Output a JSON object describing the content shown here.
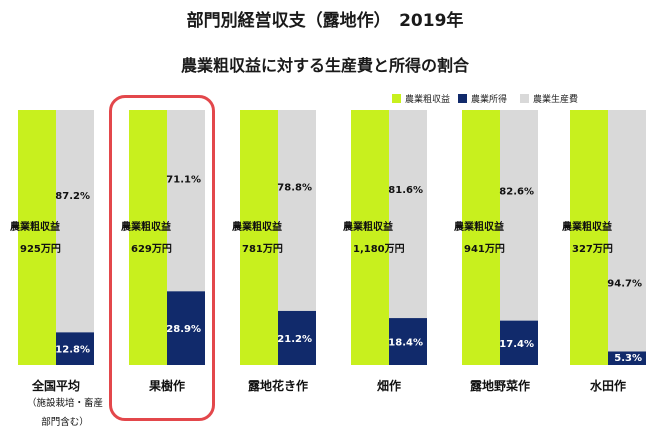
{
  "title": "部門別経営収支（露地作）　2019年",
  "subtitle": "農業粗収益に対する生産費と所得の割合",
  "legend": {
    "revenue": "農業粗収益",
    "income": "農業所得",
    "cost": "農業生産費"
  },
  "colors": {
    "revenue": "#c8f01e",
    "income": "#112a6b",
    "cost": "#d9d9d9",
    "highlight": "#e3474b"
  },
  "chart_data": {
    "type": "bar",
    "title": "部門別経営収支（露地作）　2019年",
    "subtitle": "農業粗収益に対する生産費と所得の割合",
    "categories": [
      "全国平均",
      "果樹作",
      "露地花き作",
      "畑作",
      "露地野菜作",
      "水田作"
    ],
    "category_notes": [
      "（施設栽培・畜産",
      "部門含む）"
    ],
    "highlighted_category": "果樹作",
    "revenue_labels": [
      [
        "農業粗収益",
        "925万円"
      ],
      [
        "農業粗収益",
        "629万円"
      ],
      [
        "農業粗収益",
        "781万円"
      ],
      [
        "農業粗収益",
        "1,180万円"
      ],
      [
        "農業粗収益",
        "941万円"
      ],
      [
        "農業粗収益",
        "327万円"
      ]
    ],
    "series": [
      {
        "name": "農業粗収益",
        "unit": "万円",
        "values": [
          925,
          629,
          781,
          1180,
          941,
          327
        ]
      },
      {
        "name": "農業所得",
        "unit": "%",
        "values": [
          12.8,
          28.9,
          21.2,
          18.4,
          17.4,
          5.3
        ],
        "labels": [
          "12.8%",
          "28.9%",
          "21.2%",
          "18.4%",
          "17.4%",
          "5.3%"
        ]
      },
      {
        "name": "農業生産費",
        "unit": "%",
        "values": [
          87.2,
          71.1,
          78.8,
          81.6,
          82.6,
          94.7
        ],
        "labels": [
          "87.2%",
          "71.1%",
          "78.8%",
          "81.6%",
          "82.6%",
          "94.7%"
        ]
      }
    ],
    "ylim": [
      0,
      100
    ],
    "grid": false,
    "legend_position": "top-right"
  }
}
